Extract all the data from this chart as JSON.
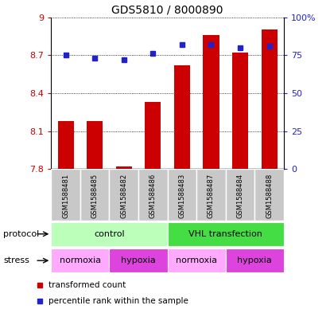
{
  "title": "GDS5810 / 8000890",
  "samples": [
    "GSM1588481",
    "GSM1588485",
    "GSM1588482",
    "GSM1588486",
    "GSM1588483",
    "GSM1588487",
    "GSM1588484",
    "GSM1588488"
  ],
  "transformed_counts": [
    8.18,
    8.18,
    7.82,
    8.33,
    8.62,
    8.86,
    8.72,
    8.9
  ],
  "percentile_ranks": [
    75,
    73,
    72,
    76,
    82,
    82,
    80,
    81
  ],
  "ylim_left": [
    7.8,
    9.0
  ],
  "yticks_left": [
    7.8,
    8.1,
    8.4,
    8.7,
    9.0
  ],
  "yticklabels_left": [
    "7.8",
    "8.1",
    "8.4",
    "8.7",
    "9"
  ],
  "ylim_right": [
    0,
    100
  ],
  "yticks_right": [
    0,
    25,
    50,
    75,
    100
  ],
  "yticklabels_right": [
    "0",
    "25",
    "50",
    "75",
    "100%"
  ],
  "bar_color": "#cc0000",
  "dot_color": "#2222cc",
  "bar_bottom": 7.8,
  "bar_width": 0.55,
  "protocol_groups": [
    {
      "label": "control",
      "start": 0,
      "end": 4,
      "color": "#bbffbb"
    },
    {
      "label": "VHL transfection",
      "start": 4,
      "end": 8,
      "color": "#44dd44"
    }
  ],
  "stress_groups": [
    {
      "label": "normoxia",
      "start": 0,
      "end": 2,
      "color": "#ffaaff"
    },
    {
      "label": "hypoxia",
      "start": 2,
      "end": 4,
      "color": "#dd44dd"
    },
    {
      "label": "normoxia",
      "start": 4,
      "end": 6,
      "color": "#ffaaff"
    },
    {
      "label": "hypoxia",
      "start": 6,
      "end": 8,
      "color": "#dd44dd"
    }
  ],
  "legend_items": [
    {
      "label": "transformed count",
      "color": "#cc0000"
    },
    {
      "label": "percentile rank within the sample",
      "color": "#2222cc"
    }
  ],
  "left_label_color": "#cc0000",
  "right_label_color": "#2222cc",
  "sample_bg": "#c8c8c8",
  "sample_border": "#ffffff"
}
